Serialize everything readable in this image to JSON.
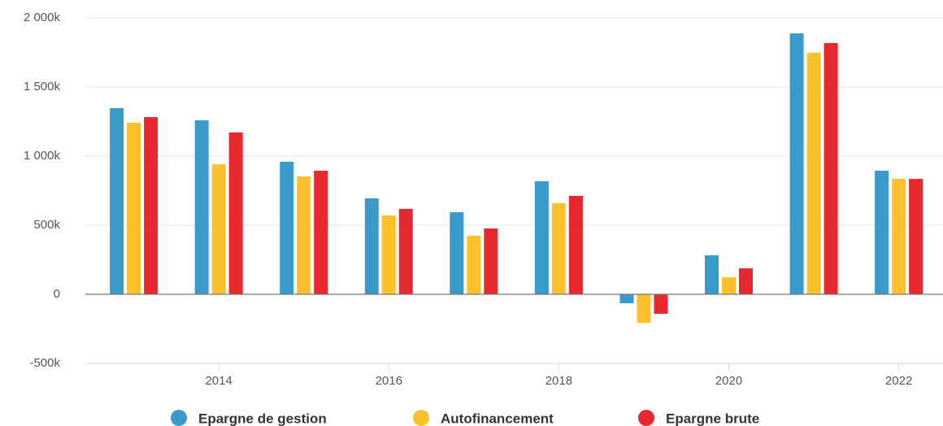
{
  "chart_data": {
    "type": "bar",
    "x": [
      2013,
      2014,
      2015,
      2016,
      2017,
      2018,
      2019,
      2020,
      2021,
      2022
    ],
    "xlim": [
      2012.43,
      2022.52
    ],
    "xticks": [
      2014,
      2016,
      2018,
      2020,
      2022
    ],
    "ylim": [
      -500000,
      2000000
    ],
    "yticks": [
      {
        "value": -500000,
        "label": "-500k"
      },
      0,
      {
        "value": 500000,
        "label": "500k"
      },
      {
        "value": 1000000,
        "label": "1 000k"
      },
      {
        "value": 1500000,
        "label": "1 500k"
      },
      {
        "value": 2000000,
        "label": "2 000k"
      }
    ],
    "grid": true,
    "legend": "bottom",
    "series": [
      {
        "name": "Epargne de gestion",
        "color": "#3a9ac9",
        "values": [
          1347000,
          1259000,
          959000,
          694000,
          594000,
          818000,
          -65000,
          282000,
          1888000,
          894000
        ]
      },
      {
        "name": "Autofinancement",
        "color": "#fcc12c",
        "values": [
          1241000,
          941000,
          853000,
          571000,
          424000,
          659000,
          -206000,
          124000,
          1747000,
          835000
        ]
      },
      {
        "name": "Epargne brute",
        "color": "#e8282f",
        "values": [
          1282000,
          1171000,
          894000,
          618000,
          476000,
          712000,
          -141000,
          188000,
          1818000,
          835000
        ]
      }
    ]
  }
}
